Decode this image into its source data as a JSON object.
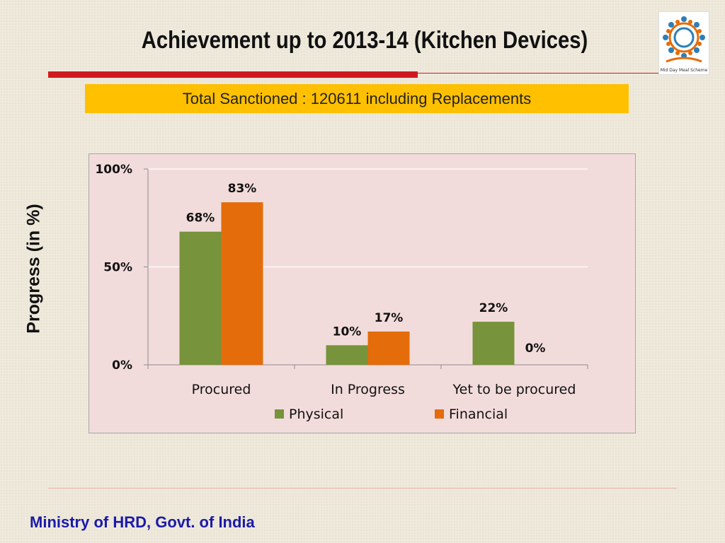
{
  "slide": {
    "title": "Achievement up to 2013-14 (Kitchen Devices)",
    "banner": "Total Sanctioned : 120611 including Replacements",
    "footer": "Ministry of HRD, Govt. of India",
    "logo_text": "Mid Day Meal Scheme"
  },
  "colors": {
    "physical": "#77933c",
    "financial": "#e46c0a",
    "banner": "#ffc000",
    "accent_red": "#d0191f",
    "plot_bg": "#f2dcdb",
    "footer_text": "#1a1aa8"
  },
  "chart_data": {
    "type": "bar",
    "title": "",
    "ylabel": "Progress (in %)",
    "xlabel": "",
    "categories": [
      "Procured",
      "In Progress",
      "Yet to be procured"
    ],
    "series": [
      {
        "name": "Physical",
        "values": [
          68,
          10,
          22
        ],
        "labels": [
          "68%",
          "10%",
          "22%"
        ]
      },
      {
        "name": "Financial",
        "values": [
          83,
          17,
          0
        ],
        "labels": [
          "83%",
          "17%",
          "0%"
        ]
      }
    ],
    "ylim": [
      0,
      100
    ],
    "yticks": [
      0,
      50,
      100
    ],
    "ytick_labels": [
      "0%",
      "50%",
      "100%"
    ],
    "grid": true,
    "legend": "bottom"
  }
}
